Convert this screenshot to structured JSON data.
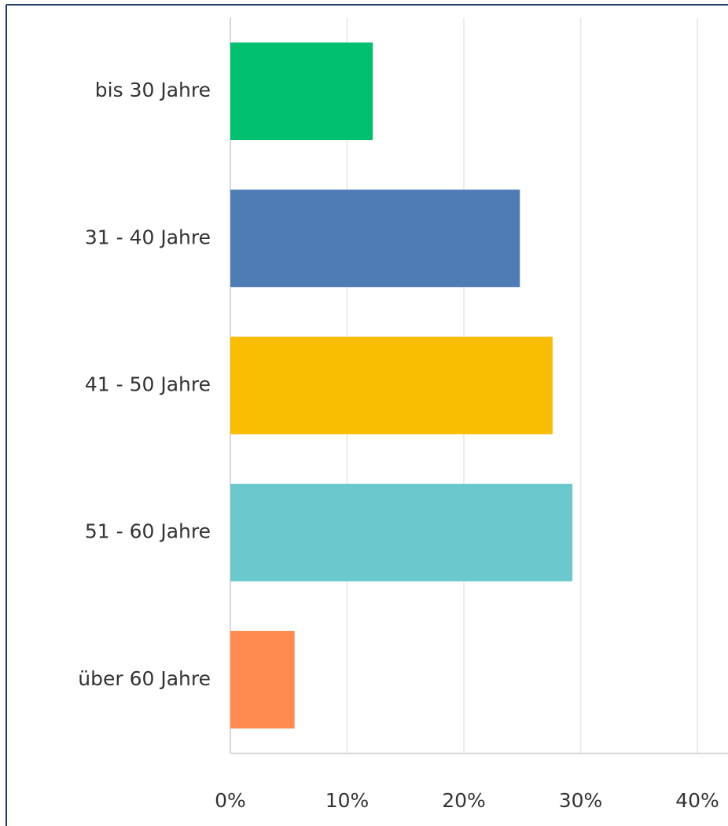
{
  "chart_data": {
    "type": "bar",
    "orientation": "horizontal",
    "categories": [
      "bis 30 Jahre",
      "31 - 40 Jahre",
      "41 - 50 Jahre",
      "51 - 60 Jahre",
      "über 60 Jahre"
    ],
    "values": [
      12.2,
      24.8,
      27.6,
      29.3,
      5.5
    ],
    "colors": [
      "#00bf6f",
      "#507cb6",
      "#f9be00",
      "#6bc8cd",
      "#ff8b4f"
    ],
    "xlim": [
      0,
      40
    ],
    "xticks": [
      {
        "value": 0,
        "label": "0%"
      },
      {
        "value": 10,
        "label": "10%"
      },
      {
        "value": 20,
        "label": "20%"
      },
      {
        "value": 30,
        "label": "30%"
      },
      {
        "value": 40,
        "label": "40%"
      }
    ],
    "grid": true
  }
}
